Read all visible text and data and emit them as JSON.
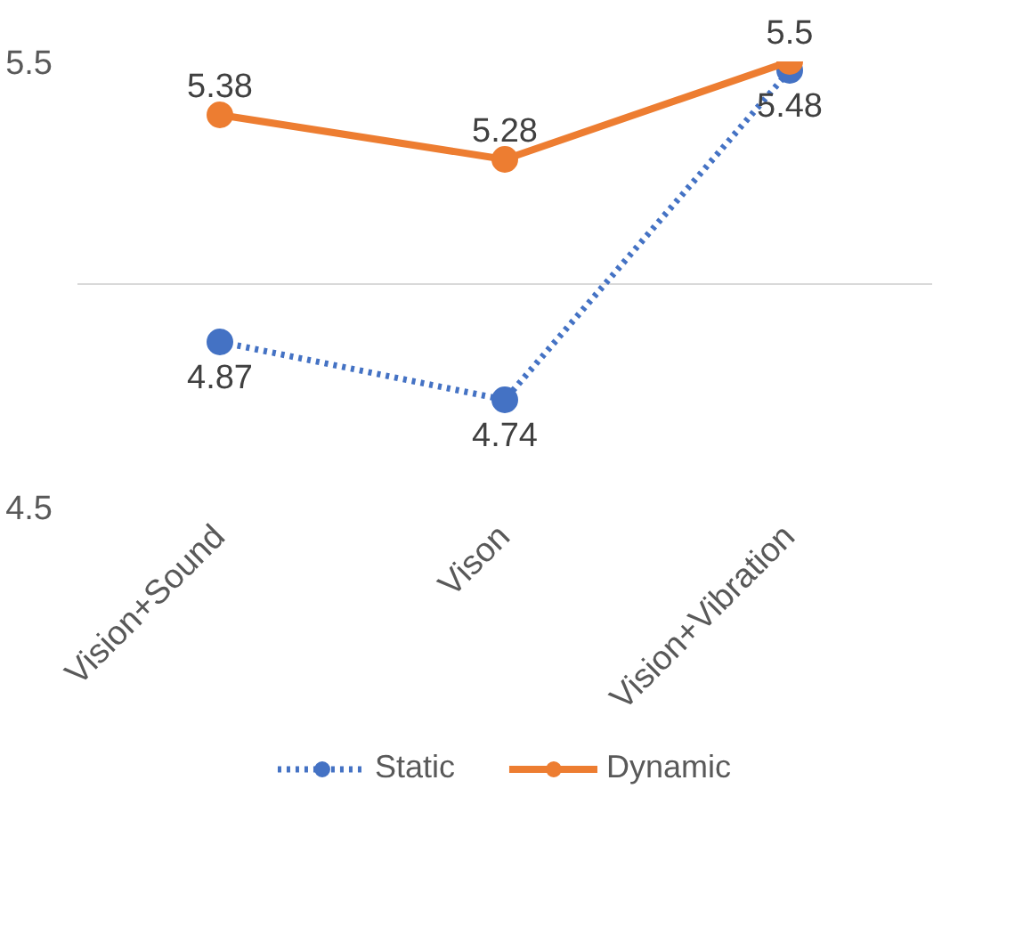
{
  "chart_data": {
    "type": "line",
    "categories": [
      "Vision+Sound",
      "Vison",
      "Vision+Vibration"
    ],
    "series": [
      {
        "name": "Static",
        "color": "#4472c4",
        "values": [
          4.87,
          4.74,
          5.48
        ],
        "line_style": "dotted"
      },
      {
        "name": "Dynamic",
        "color": "#ed7d31",
        "values": [
          5.38,
          5.28,
          5.5
        ],
        "line_style": "solid"
      }
    ],
    "ylim": [
      4.5,
      5.5
    ],
    "yticks": [
      4.5,
      {
        "value": 5,
        "label": null
      },
      5.5
    ],
    "grid": "y",
    "legend": "bottom",
    "marker": "circle",
    "data_labels": true
  }
}
